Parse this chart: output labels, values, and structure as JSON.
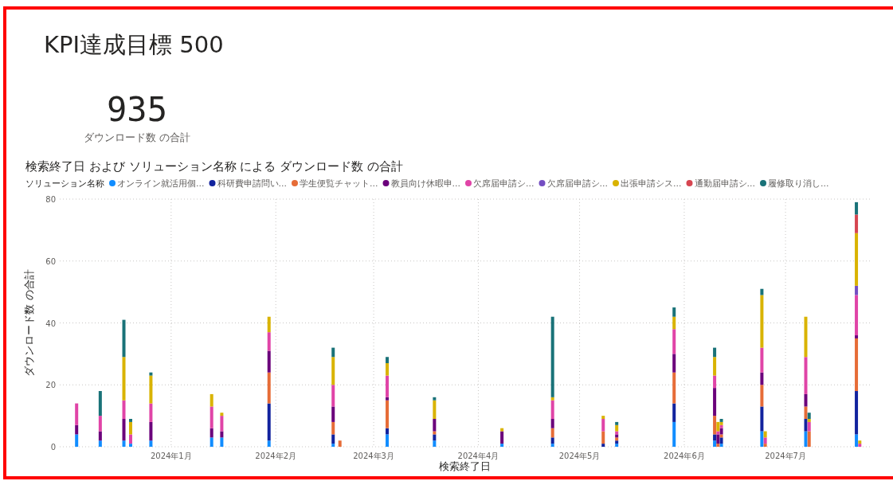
{
  "chart_data": {
    "type": "bar",
    "stacked": true,
    "title": "KPI達成目標 500",
    "subtitle": "検索終了日 および ソリューション名称 による ダウンロード数 の合計",
    "annotations": [
      "935",
      "ダウンロード数 の合計"
    ],
    "xlabel": "検索終了日",
    "ylabel": "ダウンロード数 の合計",
    "legend_title": "ソリューション名称",
    "legend": "top left",
    "grid": true,
    "x": [
      "2023-12-04",
      "2023-12-11",
      "2023-12-18",
      "2023-12-20",
      "2023-12-26",
      "2024-01-13",
      "2024-01-16",
      "2024-01-30",
      "2024-02-18",
      "2024-02-20",
      "2024-03-05",
      "2024-03-19",
      "2024-04-08",
      "2024-04-23",
      "2024-05-08",
      "2024-05-12",
      "2024-05-29",
      "2024-06-10",
      "2024-06-11",
      "2024-06-12",
      "2024-06-24",
      "2024-06-25",
      "2024-07-07",
      "2024-07-08",
      "2024-07-22",
      "2024-07-23"
    ],
    "xlim": [
      "2023-11-29",
      "2024-07-26"
    ],
    "xticks": [
      {
        "value": "2024-01-01",
        "label": "2024年1月"
      },
      {
        "value": "2024-02-01",
        "label": "2024年2月"
      },
      {
        "value": "2024-03-01",
        "label": "2024年3月"
      },
      {
        "value": "2024-04-01",
        "label": "2024年4月"
      },
      {
        "value": "2024-05-01",
        "label": "2024年5月"
      },
      {
        "value": "2024-06-01",
        "label": "2024年6月"
      },
      {
        "value": "2024-07-01",
        "label": "2024年7月"
      }
    ],
    "ylim": [
      0,
      80
    ],
    "yticks": [
      0,
      20,
      40,
      60,
      80
    ],
    "series": [
      {
        "name": "オンライン就活用個...",
        "color": "#118dff",
        "values": [
          4,
          2,
          2,
          1,
          2,
          3,
          3,
          2,
          1,
          null,
          4,
          2,
          1,
          1,
          null,
          1,
          8,
          2,
          null,
          1,
          5,
          null,
          5,
          null,
          4,
          null
        ]
      },
      {
        "name": "科研費申請問い...",
        "color": "#12239e",
        "values": [
          null,
          null,
          null,
          null,
          null,
          null,
          null,
          12,
          3,
          null,
          2,
          2,
          null,
          2,
          1,
          1,
          6,
          2,
          null,
          2,
          8,
          null,
          4,
          null,
          14,
          null
        ]
      },
      {
        "name": "学生便覧チャット...",
        "color": "#e66c37",
        "values": [
          null,
          null,
          null,
          null,
          null,
          null,
          null,
          10,
          4,
          2,
          9,
          1,
          null,
          3,
          4,
          1,
          10,
          6,
          1,
          1,
          7,
          1,
          4,
          5,
          17,
          null
        ]
      },
      {
        "name": "教員向け休暇申...",
        "color": "#6b007b",
        "values": [
          3,
          3,
          7,
          null,
          6,
          3,
          2,
          7,
          5,
          null,
          1,
          4,
          4,
          3,
          null,
          1,
          6,
          9,
          3,
          2,
          4,
          null,
          4,
          null,
          1,
          null
        ]
      },
      {
        "name": "欠席届申請シ...",
        "color": "#e044a7",
        "values": [
          7,
          5,
          6,
          3,
          6,
          7,
          5,
          6,
          7,
          null,
          7,
          null,
          null,
          6,
          4,
          1,
          8,
          4,
          1,
          1,
          8,
          2,
          12,
          3,
          13,
          1
        ]
      },
      {
        "name": "欠席届申請シ...",
        "color": "#744ec2",
        "values": [
          null,
          null,
          null,
          null,
          null,
          null,
          null,
          null,
          null,
          null,
          null,
          null,
          null,
          null,
          null,
          null,
          null,
          null,
          null,
          null,
          null,
          null,
          null,
          null,
          3,
          null
        ]
      },
      {
        "name": "出張申請シス...",
        "color": "#d9b300",
        "values": [
          null,
          null,
          14,
          4,
          9,
          4,
          1,
          5,
          9,
          null,
          4,
          6,
          1,
          1,
          1,
          2,
          4,
          6,
          3,
          1,
          17,
          2,
          13,
          1,
          17,
          1
        ]
      },
      {
        "name": "通勤届申請シ...",
        "color": "#d64550",
        "values": [
          null,
          null,
          null,
          null,
          null,
          null,
          null,
          null,
          null,
          null,
          null,
          null,
          null,
          null,
          null,
          null,
          null,
          null,
          null,
          null,
          null,
          null,
          null,
          null,
          6,
          null
        ]
      },
      {
        "name": "履修取り消し...",
        "color": "#197278",
        "values": [
          null,
          8,
          12,
          1,
          1,
          null,
          null,
          null,
          3,
          null,
          2,
          1,
          null,
          26,
          null,
          1,
          3,
          3,
          null,
          1,
          2,
          null,
          null,
          2,
          4,
          null
        ]
      }
    ]
  }
}
